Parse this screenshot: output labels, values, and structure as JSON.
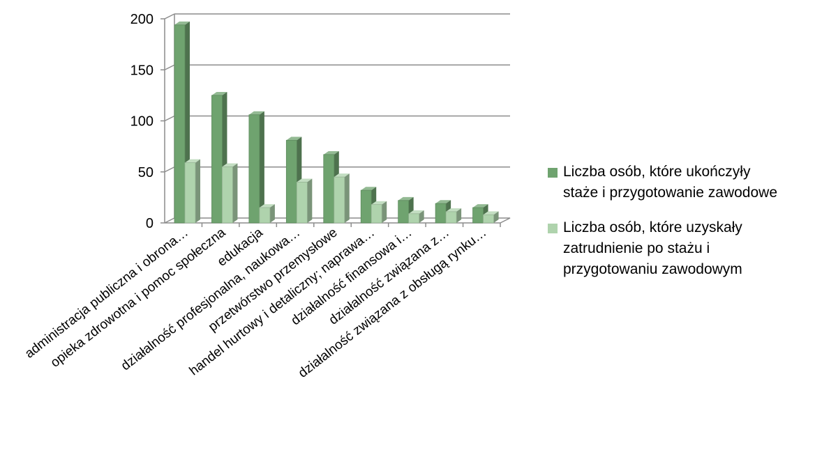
{
  "chart_data": {
    "type": "bar",
    "title": "",
    "xlabel": "",
    "ylabel": "",
    "ylim": [
      0,
      200
    ],
    "yticks": [
      0,
      50,
      100,
      150,
      200
    ],
    "grid": true,
    "legend_position": "right",
    "categories": [
      "administracja publiczna i obrona…",
      "opieka zdrowotna i pomoc społeczna",
      "edukacja",
      "działalność profesjonalna, naukowa…",
      "przetwórstwo przemysłowe",
      "handel hurtowy i detaliczny; naprawa…",
      "działalność finansowa i…",
      "działalność związana z…",
      "działalność związana z obsługą rynku…"
    ],
    "series": [
      {
        "name": "Liczba osób, które ukończyły staże i przygotowanie zawodowe",
        "color": "#6fa36f",
        "values": [
          194,
          125,
          106,
          81,
          67,
          32,
          22,
          19,
          15
        ]
      },
      {
        "name": "Liczba osób, które uzyskały zatrudnienie po stażu i przygotowaniu zawodowym",
        "color": "#afd3ad",
        "values": [
          59,
          55,
          15,
          40,
          45,
          18,
          9,
          11,
          8
        ]
      }
    ],
    "legend_lines": [
      [
        "Liczba osób, które ukończyły",
        "staże i przygotowanie zawodowe"
      ],
      [
        "Liczba osób, które uzyskały",
        "zatrudnienie po stażu i",
        "przygotowaniu zawodowym"
      ]
    ]
  }
}
